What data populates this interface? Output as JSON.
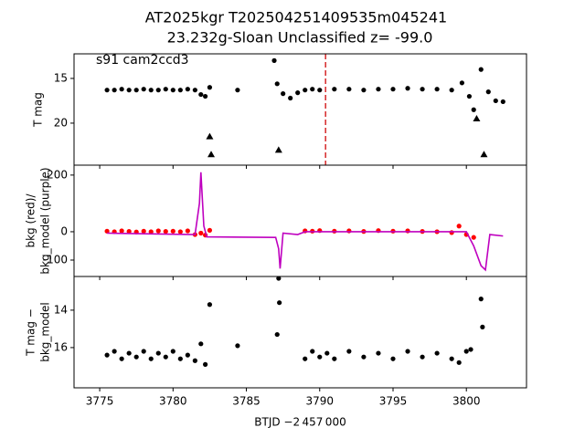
{
  "chart_data": [
    {
      "type": "scatter",
      "title": "AT2025kgr  T202504251409535m045241",
      "subtitle": "23.232g-Sloan Unclassified z= -99.0",
      "annotation": "s91 cam2ccd3",
      "ylabel": [
        "T mag"
      ],
      "xlim": [
        3773.25,
        3804.1
      ],
      "xticks": [
        3775,
        3780,
        3785,
        3790,
        3795,
        3800
      ],
      "ylim": [
        24.7,
        12.25
      ],
      "yticks": [
        15,
        20
      ],
      "vline": {
        "x": 3790.4,
        "color": "#d62728"
      },
      "series": [
        {
          "marker": "circle",
          "color": "#000000",
          "x": [
            3775.5,
            3776,
            3776.5,
            3777,
            3777.5,
            3778,
            3778.5,
            3779,
            3779.5,
            3780,
            3780.5,
            3781,
            3781.5,
            3781.9,
            3782.2,
            3782.5,
            3784.4,
            3786.9,
            3787.1,
            3787.5,
            3788,
            3788.5,
            3789,
            3789.5,
            3790,
            3791,
            3792,
            3793,
            3794,
            3795,
            3796,
            3797,
            3798,
            3799,
            3799.7,
            3800.2,
            3800.5,
            3801,
            3801.5,
            3802,
            3802.5
          ],
          "values": [
            16.3,
            16.3,
            16.2,
            16.3,
            16.3,
            16.2,
            16.3,
            16.3,
            16.2,
            16.3,
            16.3,
            16.2,
            16.3,
            16.8,
            17.0,
            16.0,
            16.3,
            13.0,
            15.6,
            16.7,
            17.2,
            16.6,
            16.3,
            16.2,
            16.3,
            16.2,
            16.2,
            16.3,
            16.2,
            16.2,
            16.1,
            16.2,
            16.2,
            16.3,
            15.5,
            17.0,
            18.5,
            14.0,
            16.5,
            17.5,
            17.6
          ]
        },
        {
          "marker": "triangle",
          "color": "#000000",
          "x": [
            3782.5,
            3782.6,
            3787.2,
            3800.7,
            3801.2
          ],
          "values": [
            21.5,
            23.5,
            23.0,
            19.5,
            23.5
          ]
        }
      ]
    },
    {
      "type": "scatter",
      "ylabel": [
        "bkg (red)/",
        "bkg_model (purple)"
      ],
      "xlim": [
        3773.25,
        3804.1
      ],
      "xticks": [
        3775,
        3780,
        3785,
        3790,
        3795,
        3800
      ],
      "ylim": [
        -158,
        235
      ],
      "yticks": [
        -100,
        0,
        200
      ],
      "series": [
        {
          "marker": "circle",
          "color": "#ff0000",
          "x": [
            3775.5,
            3776,
            3776.5,
            3777,
            3777.5,
            3778,
            3778.5,
            3779,
            3779.5,
            3780,
            3780.5,
            3781,
            3781.5,
            3781.9,
            3782.2,
            3782.5,
            3789,
            3789.5,
            3790,
            3791,
            3792,
            3793,
            3794,
            3795,
            3796,
            3797,
            3798,
            3799,
            3799.5,
            3800,
            3800.5
          ],
          "values": [
            2,
            0,
            3,
            1,
            -1,
            2,
            0,
            3,
            1,
            2,
            0,
            3,
            -10,
            -5,
            -12,
            5,
            3,
            2,
            4,
            2,
            3,
            1,
            4,
            2,
            3,
            1,
            0,
            -3,
            20,
            -10,
            -20
          ]
        },
        {
          "marker": "line",
          "color": "#bf00bf",
          "x": [
            3775.5,
            3781.5,
            3781.8,
            3781.9,
            3782.1,
            3782.3,
            3787,
            3787.2,
            3787.3,
            3787.5,
            3788.5,
            3789,
            3800,
            3800.5,
            3801,
            3801.3,
            3801.6,
            3802.5
          ],
          "values": [
            -5,
            -10,
            100,
            210,
            20,
            -18,
            -20,
            -60,
            -130,
            -5,
            -10,
            0,
            0,
            -50,
            -120,
            -135,
            -10,
            -15
          ]
        }
      ]
    },
    {
      "type": "scatter",
      "ylabel": [
        "T mag −",
        "bkg_model"
      ],
      "xlabel": "BTJD −2 457 000",
      "xlim": [
        3773.25,
        3804.1
      ],
      "xticks": [
        3775,
        3780,
        3785,
        3790,
        3795,
        3800
      ],
      "ylim": [
        18.15,
        12.2
      ],
      "yticks": [
        14,
        16
      ],
      "series": [
        {
          "marker": "circle",
          "color": "#000000",
          "x": [
            3775.5,
            3776,
            3776.5,
            3777,
            3777.5,
            3778,
            3778.5,
            3779,
            3779.5,
            3780,
            3780.5,
            3781,
            3781.5,
            3781.9,
            3782.2,
            3782.5,
            3784.4,
            3787.1,
            3787.2,
            3787.25,
            3789,
            3789.5,
            3790,
            3790.5,
            3791,
            3792,
            3793,
            3794,
            3795,
            3796,
            3797,
            3798,
            3799,
            3799.5,
            3800,
            3800.3,
            3801,
            3801.1
          ],
          "values": [
            16.4,
            16.2,
            16.6,
            16.3,
            16.5,
            16.2,
            16.6,
            16.3,
            16.5,
            16.2,
            16.6,
            16.4,
            16.7,
            15.8,
            16.9,
            13.7,
            15.9,
            15.3,
            12.3,
            13.6,
            16.6,
            16.2,
            16.5,
            16.3,
            16.6,
            16.2,
            16.5,
            16.3,
            16.6,
            16.2,
            16.5,
            16.3,
            16.6,
            16.8,
            16.2,
            16.1,
            13.4,
            14.9
          ]
        }
      ]
    }
  ]
}
